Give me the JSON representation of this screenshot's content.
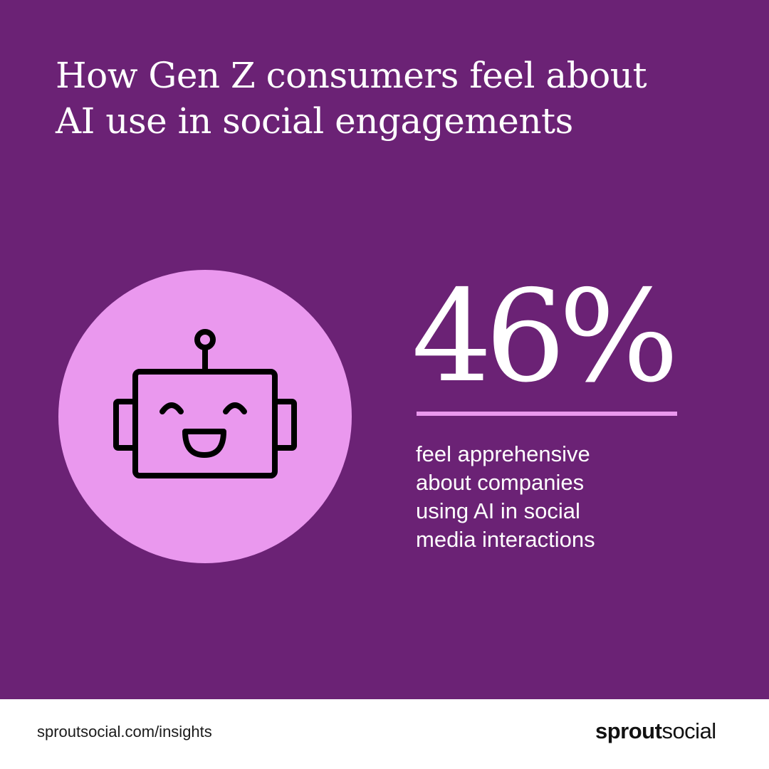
{
  "headline": {
    "line1": "How Gen Z consumers feel about",
    "line2": "AI use in social engagements"
  },
  "illustration": {
    "icon": "smiling-robot-icon",
    "circle_color": "#ea98ee"
  },
  "stat": {
    "value": "46%",
    "caption_lines": [
      "feel apprehensive",
      "about companies",
      "using AI in social",
      "media interactions"
    ]
  },
  "footer": {
    "url": "sproutsocial.com/insights",
    "brand_bold": "sprout",
    "brand_regular": "social"
  },
  "colors": {
    "background": "#6b2275",
    "accent": "#ea98ee",
    "footer_background": "#ffffff",
    "text": "#ffffff"
  }
}
